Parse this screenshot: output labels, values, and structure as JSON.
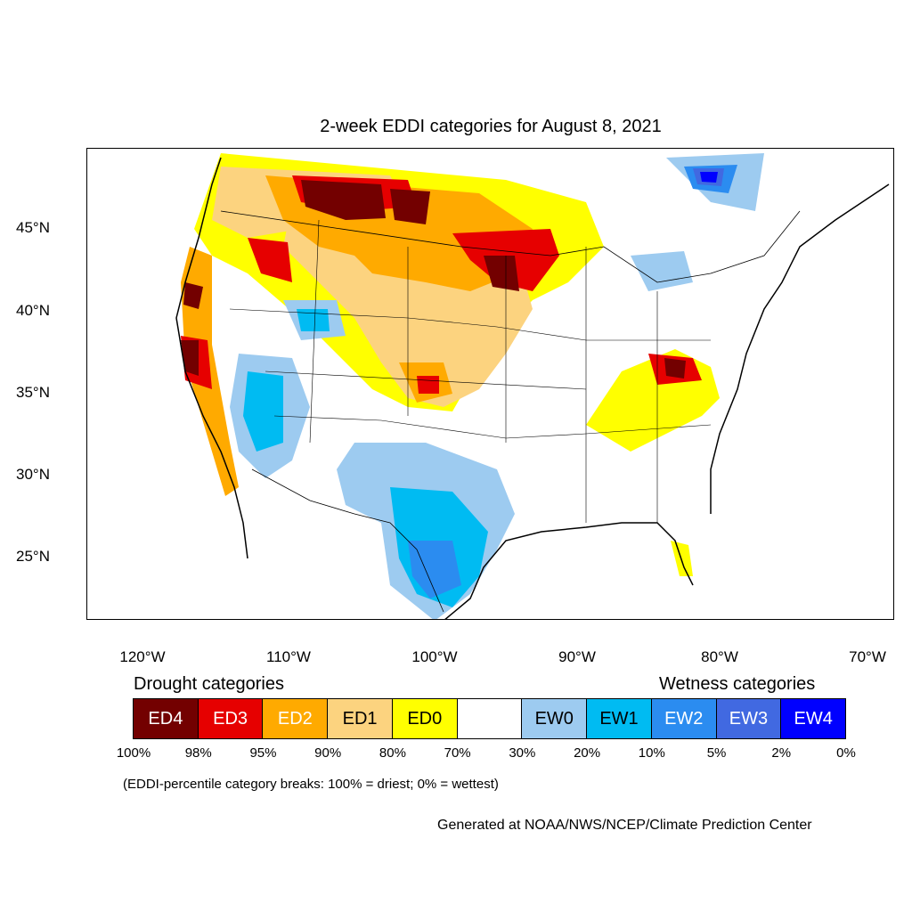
{
  "title": "2-week EDDI categories for August 8, 2021",
  "map": {
    "lat_ticks": [
      "45°N",
      "40°N",
      "35°N",
      "30°N",
      "25°N"
    ],
    "lon_ticks": [
      "120°W",
      "110°W",
      "100°W",
      "90°W",
      "80°W",
      "70°W"
    ]
  },
  "legend": {
    "drought_heading": "Drought categories",
    "wetness_heading": "Wetness categories",
    "categories": [
      {
        "label": "ED4",
        "color": "#730000",
        "text_color": "#ffffff"
      },
      {
        "label": "ED3",
        "color": "#e60000",
        "text_color": "#ffffff"
      },
      {
        "label": "ED2",
        "color": "#ffaa00",
        "text_color": "#ffffff"
      },
      {
        "label": "ED1",
        "color": "#fcd37f",
        "text_color": "#000000"
      },
      {
        "label": "ED0",
        "color": "#ffff00",
        "text_color": "#000000"
      },
      {
        "label": "",
        "color": "#ffffff",
        "text_color": "#000000"
      },
      {
        "label": "EW0",
        "color": "#9dcbf0",
        "text_color": "#000000"
      },
      {
        "label": "EW1",
        "color": "#00bbf2",
        "text_color": "#000000"
      },
      {
        "label": "EW2",
        "color": "#2b8cf0",
        "text_color": "#ffffff"
      },
      {
        "label": "EW3",
        "color": "#4169e1",
        "text_color": "#ffffff"
      },
      {
        "label": "EW4",
        "color": "#0000ff",
        "text_color": "#ffffff"
      }
    ],
    "breaks": [
      "100%",
      "98%",
      "95%",
      "90%",
      "80%",
      "70%",
      "30%",
      "20%",
      "10%",
      "5%",
      "2%",
      "0%"
    ]
  },
  "note": "(EDDI-percentile category breaks: 100% = driest; 0% = wettest)",
  "credit": "Generated at NOAA/NWS/NCEP/Climate Prediction Center"
}
